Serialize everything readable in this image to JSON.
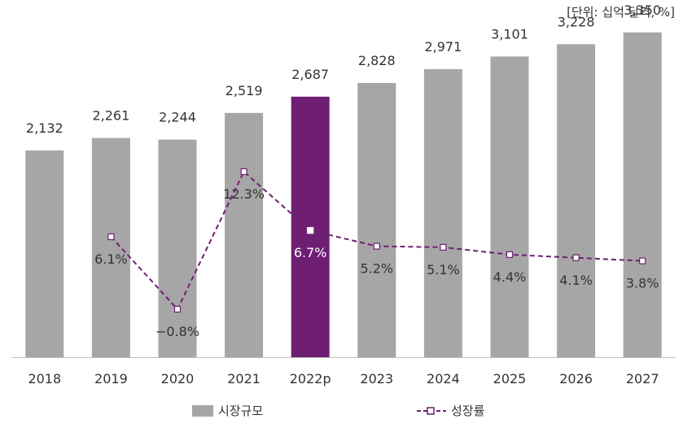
{
  "unit_note": "[단위: 십억 달러, %]",
  "legend": {
    "bar_label": "시장규모",
    "line_label": "성장률"
  },
  "colors": {
    "bar": "#a6a6a6",
    "highlight_bar": "#6e1f73",
    "line": "#6e1f73",
    "axis": "#bfbfbf",
    "text": "#333333"
  },
  "chart_data": {
    "type": "bar",
    "categories": [
      "2018",
      "2019",
      "2020",
      "2021",
      "2022p",
      "2023",
      "2024",
      "2025",
      "2026",
      "2027"
    ],
    "highlight_category": "2022p",
    "series": [
      {
        "name": "시장규모",
        "type": "bar",
        "values": [
          2132,
          2261,
          2244,
          2519,
          2687,
          2828,
          2971,
          3101,
          3228,
          3350
        ],
        "labels": [
          "2,132",
          "2,261",
          "2,244",
          "2,519",
          "2,687",
          "2,828",
          "2,971",
          "3,101",
          "3,228",
          "3,350"
        ]
      },
      {
        "name": "성장률",
        "type": "line",
        "style": "dashed",
        "marker": "hollow-square",
        "values": [
          null,
          6.1,
          -0.8,
          12.3,
          6.7,
          5.2,
          5.1,
          4.4,
          4.1,
          3.8
        ],
        "labels": [
          "",
          "6.1%",
          "−0.8%",
          "12.3%",
          "6.7%",
          "5.2%",
          "5.1%",
          "4.4%",
          "4.1%",
          "3.8%"
        ]
      }
    ],
    "title": "",
    "xlabel": "",
    "ylabel": "",
    "ylim": [
      0,
      3600
    ],
    "y2lim": [
      -7,
      24
    ],
    "grid": false,
    "legend_position": "bottom"
  }
}
